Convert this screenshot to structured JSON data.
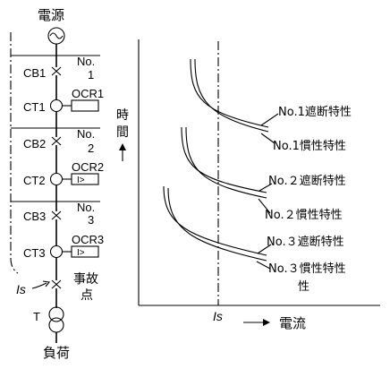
{
  "single_line": {
    "source_label": "電源",
    "sections": [
      {
        "no_line1": "No.",
        "no_line2": "1",
        "cb": "CB1",
        "ct": "CT1",
        "ocr": "OCR1",
        "ocr_symbol": ""
      },
      {
        "no_line1": "No.",
        "no_line2": "2",
        "cb": "CB2",
        "ct": "CT2",
        "ocr": "OCR2",
        "ocr_symbol": "I>"
      },
      {
        "no_line1": "No.",
        "no_line2": "3",
        "cb": "CB3",
        "ct": "CT3",
        "ocr": "OCR3",
        "ocr_symbol": "I>"
      }
    ],
    "fault_label_1": "事故",
    "fault_label_2": "点",
    "fault_current": "Is",
    "transformer": "T",
    "load_label": "負荷"
  },
  "chart": {
    "y_axis_label_1": "時",
    "y_axis_label_2": "間",
    "x_mark": "Is",
    "x_axis_label": "電流",
    "curve_labels": [
      "No.1遮断特性",
      "No.1慣性特性",
      "No.２遮断特性",
      "No.２慣性特性",
      "No.３遮断特性",
      "No.３慣性特性",
      "性"
    ]
  }
}
